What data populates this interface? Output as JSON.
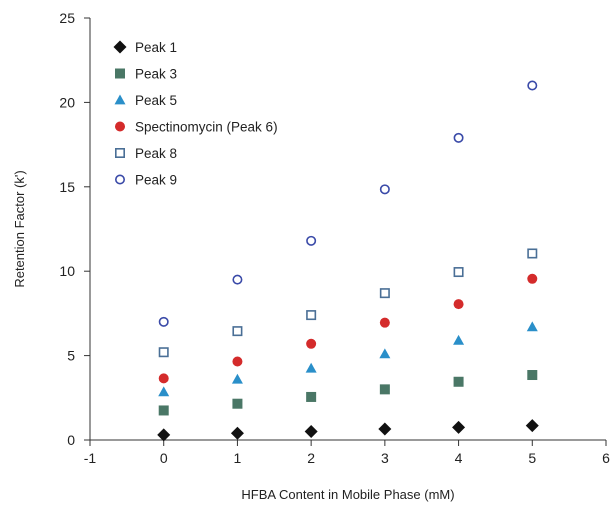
{
  "chart_data": {
    "type": "scatter",
    "title": "",
    "xlabel": "HFBA Content in Mobile Phase (mM)",
    "ylabel": "Retention Factor (k')",
    "xlim": [
      -1,
      6
    ],
    "ylim": [
      0,
      25
    ],
    "xticks": [
      "-1",
      "0",
      "1",
      "2",
      "3",
      "4",
      "5",
      "6"
    ],
    "yticks": [
      "0",
      "5",
      "10",
      "15",
      "20",
      "25"
    ],
    "grid": false,
    "legend_position": "top-left",
    "x": [
      0,
      1,
      2,
      3,
      4,
      5
    ],
    "series": [
      {
        "name": "Peak 1",
        "marker": "diamond",
        "filled": true,
        "color": "#111111",
        "values": [
          0.3,
          0.4,
          0.5,
          0.65,
          0.75,
          0.85
        ]
      },
      {
        "name": "Peak 3",
        "marker": "square",
        "filled": true,
        "color": "#4a7766",
        "values": [
          1.75,
          2.15,
          2.55,
          3.0,
          3.45,
          3.85
        ]
      },
      {
        "name": "Peak 5",
        "marker": "triangle",
        "filled": true,
        "color": "#2a8fc9",
        "values": [
          2.85,
          3.6,
          4.25,
          5.1,
          5.9,
          6.7
        ]
      },
      {
        "name": "Spectinomycin (Peak 6)",
        "marker": "circle",
        "filled": true,
        "color": "#d42b2b",
        "values": [
          3.65,
          4.65,
          5.7,
          6.95,
          8.05,
          9.55
        ]
      },
      {
        "name": "Peak 8",
        "marker": "square",
        "filled": false,
        "color": "#4a6f96",
        "values": [
          5.2,
          6.45,
          7.4,
          8.7,
          9.95,
          11.05
        ]
      },
      {
        "name": "Peak 9",
        "marker": "circle",
        "filled": false,
        "color": "#3a4aa8",
        "values": [
          7.0,
          9.5,
          11.8,
          14.85,
          17.9,
          21.0
        ]
      }
    ]
  }
}
